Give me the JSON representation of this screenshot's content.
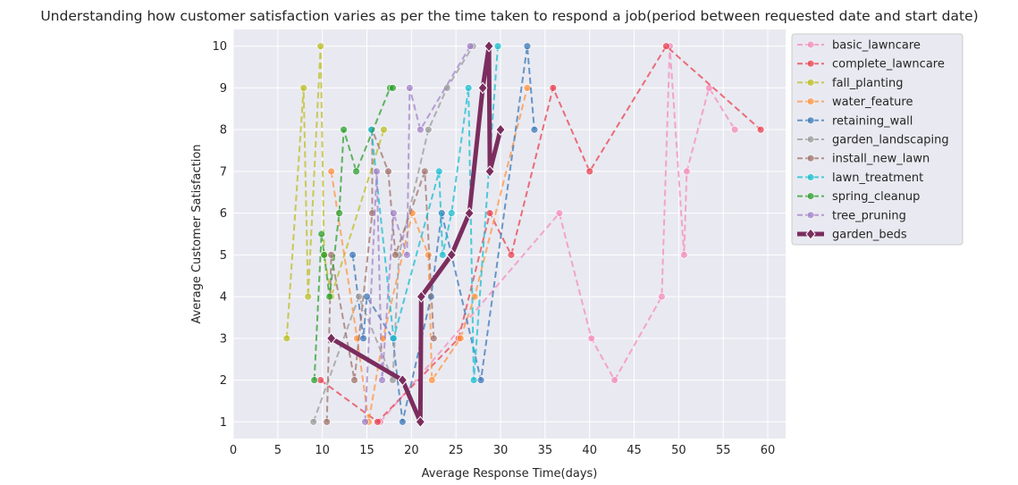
{
  "chart_data": {
    "type": "line",
    "title": "Understanding how customer satisfaction varies as per the time taken to respond a job(period between requested date and start date)",
    "xlabel": "Average Response Time(days)",
    "ylabel": "Average Customer Satisfaction",
    "xlim": [
      0,
      62
    ],
    "ylim": [
      0.6,
      10.4
    ],
    "xticks": [
      0,
      5,
      10,
      15,
      20,
      25,
      30,
      35,
      40,
      45,
      50,
      55,
      60
    ],
    "yticks": [
      1,
      2,
      3,
      4,
      5,
      6,
      7,
      8,
      9,
      10
    ],
    "grid": true,
    "legend_position": "outside-right-top",
    "series": [
      {
        "name": "basic_lawncare",
        "color": "#f48cba",
        "points": [
          [
            16.5,
            1
          ],
          [
            36.6,
            6
          ],
          [
            40.2,
            3
          ],
          [
            42.8,
            2
          ],
          [
            48.1,
            4
          ],
          [
            49.0,
            10
          ],
          [
            50.6,
            5
          ],
          [
            50.9,
            7
          ],
          [
            53.4,
            9
          ],
          [
            56.3,
            8
          ]
        ]
      },
      {
        "name": "complete_lawncare",
        "color": "#e8414f",
        "points": [
          [
            9.8,
            2
          ],
          [
            16.2,
            1
          ],
          [
            25.3,
            3
          ],
          [
            28.8,
            6
          ],
          [
            31.2,
            5
          ],
          [
            35.9,
            9
          ],
          [
            40.0,
            7
          ],
          [
            48.6,
            10
          ],
          [
            59.2,
            8
          ]
        ]
      },
      {
        "name": "fall_planting",
        "color": "#bcbd22",
        "points": [
          [
            6.0,
            3
          ],
          [
            7.9,
            9
          ],
          [
            8.4,
            4
          ],
          [
            9.8,
            10
          ],
          [
            10.2,
            5
          ],
          [
            11.0,
            4
          ],
          [
            16.9,
            8
          ]
        ]
      },
      {
        "name": "water_feature",
        "color": "#ff9440",
        "points": [
          [
            11.0,
            7
          ],
          [
            13.9,
            3
          ],
          [
            15.2,
            1
          ],
          [
            16.8,
            3
          ],
          [
            20.1,
            6
          ],
          [
            21.9,
            5
          ],
          [
            22.3,
            2
          ],
          [
            25.5,
            3
          ],
          [
            27.1,
            4
          ],
          [
            33.0,
            9
          ]
        ]
      },
      {
        "name": "retaining_wall",
        "color": "#3a78b8",
        "points": [
          [
            13.4,
            5
          ],
          [
            14.6,
            3
          ],
          [
            15.0,
            4
          ],
          [
            17.9,
            3
          ],
          [
            19.0,
            1
          ],
          [
            22.2,
            4
          ],
          [
            23.4,
            6
          ],
          [
            27.8,
            2
          ],
          [
            33.0,
            10
          ],
          [
            33.8,
            8
          ]
        ]
      },
      {
        "name": "garden_landscaping",
        "color": "#999999",
        "points": [
          [
            9.0,
            1
          ],
          [
            14.1,
            4
          ],
          [
            17.9,
            2
          ],
          [
            18.6,
            5
          ],
          [
            21.9,
            8
          ],
          [
            24.0,
            9
          ],
          [
            26.9,
            10
          ]
        ]
      },
      {
        "name": "install_new_lawn",
        "color": "#a0736b",
        "points": [
          [
            10.5,
            1
          ],
          [
            11.0,
            5
          ],
          [
            13.6,
            2
          ],
          [
            15.6,
            6
          ],
          [
            15.6,
            8
          ],
          [
            17.4,
            7
          ],
          [
            18.2,
            5
          ],
          [
            21.5,
            7
          ],
          [
            22.5,
            3
          ]
        ]
      },
      {
        "name": "lawn_treatment",
        "color": "#17becf",
        "points": [
          [
            15.5,
            8
          ],
          [
            18.0,
            3
          ],
          [
            23.1,
            7
          ],
          [
            23.5,
            5
          ],
          [
            24.5,
            6
          ],
          [
            26.4,
            9
          ],
          [
            27.0,
            2
          ],
          [
            29.7,
            10
          ]
        ]
      },
      {
        "name": "spring_cleanup",
        "color": "#2ca02c",
        "points": [
          [
            9.1,
            2
          ],
          [
            9.9,
            5.5
          ],
          [
            10.2,
            5
          ],
          [
            10.8,
            4
          ],
          [
            11.9,
            6
          ],
          [
            12.4,
            8
          ],
          [
            13.8,
            7
          ],
          [
            17.6,
            9
          ],
          [
            17.9,
            9
          ]
        ]
      },
      {
        "name": "tree_pruning",
        "color": "#a281c8",
        "points": [
          [
            14.8,
            1
          ],
          [
            16.1,
            7
          ],
          [
            16.7,
            2
          ],
          [
            18.0,
            6
          ],
          [
            19.5,
            5
          ],
          [
            19.8,
            9
          ],
          [
            21.0,
            8
          ],
          [
            26.6,
            10
          ]
        ]
      },
      {
        "name": "garden_beds",
        "color": "#7b2d5e",
        "points": [
          [
            11.0,
            3
          ],
          [
            19.0,
            2
          ],
          [
            21.0,
            1
          ],
          [
            21.1,
            4
          ],
          [
            24.5,
            5
          ],
          [
            26.5,
            6
          ],
          [
            28.0,
            9
          ],
          [
            28.7,
            10
          ],
          [
            28.8,
            7
          ],
          [
            30.0,
            8
          ]
        ]
      }
    ]
  }
}
